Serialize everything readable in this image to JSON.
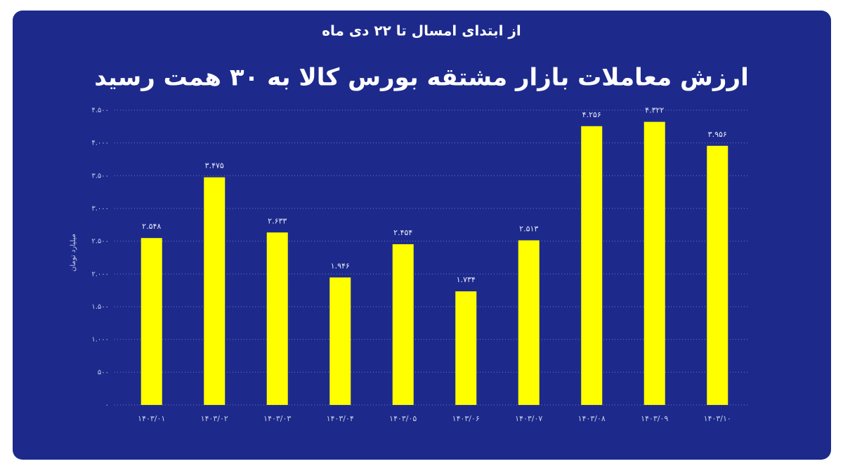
{
  "chart_data": {
    "type": "bar",
    "subtitle": "از ابتدای امسال تا ۲۲ دی ماه",
    "title": "ارزش معاملات بازار مشتقه بورس کالا به ۳۰ همت رسید",
    "y_label": "میلیارد تومان",
    "categories": [
      "۱۴۰۳/۰۱",
      "۱۴۰۳/۰۲",
      "۱۴۰۳/۰۳",
      "۱۴۰۳/۰۴",
      "۱۴۰۳/۰۵",
      "۱۴۰۳/۰۶",
      "۱۴۰۳/۰۷",
      "۱۴۰۳/۰۸",
      "۱۴۰۳/۰۹",
      "۱۴۰۳/۱۰"
    ],
    "values": [
      2548,
      3475,
      2633,
      1946,
      2454,
      1734,
      2513,
      4256,
      4322,
      3956
    ],
    "value_labels": [
      "۲.۵۴۸",
      "۳.۴۷۵",
      "۲.۶۳۳",
      "۱.۹۴۶",
      "۲.۴۵۴",
      "۱.۷۳۴",
      "۲.۵۱۳",
      "۴.۲۵۶",
      "۴.۳۲۲",
      "۳.۹۵۶"
    ],
    "color": "#ffff00",
    "ylim": [
      0,
      4500
    ],
    "yticks": [
      {
        "value": 0,
        "label": "۰"
      },
      {
        "value": 500,
        "label": "۵۰۰"
      },
      {
        "value": 1000,
        "label": "۱.۰۰۰"
      },
      {
        "value": 1500,
        "label": "۱.۵۰۰"
      },
      {
        "value": 2000,
        "label": "۲.۰۰۰"
      },
      {
        "value": 2500,
        "label": "۲.۵۰۰"
      },
      {
        "value": 3000,
        "label": "۳.۰۰۰"
      },
      {
        "value": 3500,
        "label": "۳.۵۰۰"
      },
      {
        "value": 4000,
        "label": "۴.۰۰۰"
      },
      {
        "value": 4500,
        "label": "۴.۵۰۰"
      }
    ],
    "grid": true
  }
}
